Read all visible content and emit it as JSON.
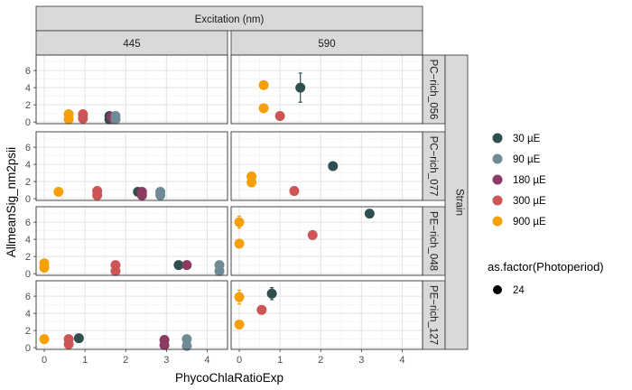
{
  "chart_data": {
    "type": "scatter",
    "xlabel": "PhycoChlaRatioExp",
    "ylabel": "AllmeanSig_nm2psii",
    "xlim": [
      -0.2,
      4.5
    ],
    "ylim": [
      -0.2,
      7.8
    ],
    "x_ticks": [
      0,
      1,
      2,
      3,
      4
    ],
    "y_ticks": [
      0,
      2,
      4,
      6
    ],
    "grid": true,
    "facet_col_title": "Excitation (nm)",
    "facet_cols": [
      "445",
      "590"
    ],
    "facet_row_title": "Strain",
    "facet_rows": [
      "PC−rich_056",
      "PC−rich_077",
      "PE−rich_048",
      "PE−rich_127"
    ],
    "legend_position": "right",
    "legend_color_title": "",
    "legend_color": [
      {
        "label": "30 µE",
        "color": "#2f4f4f"
      },
      {
        "label": "90 µE",
        "color": "#6e8b96"
      },
      {
        "label": "180 µE",
        "color": "#8b3a62"
      },
      {
        "label": "300 µE",
        "color": "#cd5555"
      },
      {
        "label": "900 µE",
        "color": "#f5a00a"
      }
    ],
    "legend_shape_title": "as.factor(Photoperiod)",
    "legend_shape": [
      {
        "label": "24",
        "color": "#000000"
      }
    ],
    "panels": [
      {
        "row": 0,
        "col": 0,
        "points": [
          {
            "x": 0.6,
            "y": 0.9,
            "s": 4,
            "e": 0.2
          },
          {
            "x": 0.6,
            "y": 0.3,
            "s": 4,
            "e": 0.1
          },
          {
            "x": 0.95,
            "y": 0.9,
            "s": 3
          },
          {
            "x": 0.95,
            "y": 0.4,
            "s": 3
          },
          {
            "x": 1.6,
            "y": 0.7,
            "s": 0
          },
          {
            "x": 1.6,
            "y": 0.3,
            "s": 0
          },
          {
            "x": 1.65,
            "y": 0.6,
            "s": 2
          },
          {
            "x": 1.7,
            "y": 0.3,
            "s": 2
          },
          {
            "x": 1.75,
            "y": 0.7,
            "s": 1
          },
          {
            "x": 1.75,
            "y": 0.3,
            "s": 1
          }
        ]
      },
      {
        "row": 0,
        "col": 1,
        "points": [
          {
            "x": 0.6,
            "y": 4.3,
            "s": 4
          },
          {
            "x": 0.6,
            "y": 1.6,
            "s": 4
          },
          {
            "x": 1.0,
            "y": 0.7,
            "s": 3
          },
          {
            "x": 1.5,
            "y": 4.0,
            "s": 0,
            "e": 1.7
          }
        ]
      },
      {
        "row": 1,
        "col": 0,
        "points": [
          {
            "x": 0.35,
            "y": 0.8,
            "s": 4
          },
          {
            "x": 1.3,
            "y": 0.9,
            "s": 3
          },
          {
            "x": 1.3,
            "y": 0.4,
            "s": 3
          },
          {
            "x": 2.3,
            "y": 0.8,
            "s": 0
          },
          {
            "x": 2.4,
            "y": 0.8,
            "s": 2
          },
          {
            "x": 2.4,
            "y": 0.4,
            "s": 2
          },
          {
            "x": 2.85,
            "y": 0.8,
            "s": 1
          },
          {
            "x": 2.85,
            "y": 0.4,
            "s": 1
          }
        ]
      },
      {
        "row": 1,
        "col": 1,
        "points": [
          {
            "x": 0.3,
            "y": 2.6,
            "s": 4
          },
          {
            "x": 0.3,
            "y": 1.9,
            "s": 4
          },
          {
            "x": 1.35,
            "y": 0.9,
            "s": 3
          },
          {
            "x": 2.3,
            "y": 3.8,
            "s": 0
          }
        ]
      },
      {
        "row": 2,
        "col": 0,
        "points": [
          {
            "x": 0.0,
            "y": 1.2,
            "s": 4
          },
          {
            "x": 0.0,
            "y": 0.7,
            "s": 4
          },
          {
            "x": 1.75,
            "y": 1.0,
            "s": 3
          },
          {
            "x": 1.75,
            "y": 0.3,
            "s": 3
          },
          {
            "x": 3.3,
            "y": 1.0,
            "s": 0
          },
          {
            "x": 3.5,
            "y": 1.0,
            "s": 2
          },
          {
            "x": 4.3,
            "y": 1.0,
            "s": 1
          },
          {
            "x": 4.3,
            "y": 0.3,
            "s": 1
          }
        ]
      },
      {
        "row": 2,
        "col": 1,
        "points": [
          {
            "x": 0.0,
            "y": 6.0,
            "s": 4,
            "e": 0.7
          },
          {
            "x": 0.0,
            "y": 3.5,
            "s": 4
          },
          {
            "x": 1.8,
            "y": 4.5,
            "s": 3,
            "e": 0.5
          },
          {
            "x": 3.2,
            "y": 7.0,
            "s": 0,
            "e": 0.3
          }
        ]
      },
      {
        "row": 3,
        "col": 0,
        "points": [
          {
            "x": 0.0,
            "y": 1.0,
            "s": 4
          },
          {
            "x": 0.6,
            "y": 1.0,
            "s": 3
          },
          {
            "x": 0.6,
            "y": 0.4,
            "s": 3
          },
          {
            "x": 0.85,
            "y": 1.1,
            "s": 0
          },
          {
            "x": 2.95,
            "y": 0.9,
            "s": 2
          },
          {
            "x": 2.95,
            "y": 0.3,
            "s": 2
          },
          {
            "x": 3.5,
            "y": 1.0,
            "s": 1
          },
          {
            "x": 3.5,
            "y": 0.2,
            "s": 1
          }
        ]
      },
      {
        "row": 3,
        "col": 1,
        "points": [
          {
            "x": 0.0,
            "y": 5.9,
            "s": 4,
            "e": 0.8
          },
          {
            "x": 0.0,
            "y": 2.7,
            "s": 4
          },
          {
            "x": 0.55,
            "y": 4.4,
            "s": 3
          },
          {
            "x": 0.8,
            "y": 6.3,
            "s": 0,
            "e": 0.7
          }
        ]
      }
    ]
  }
}
